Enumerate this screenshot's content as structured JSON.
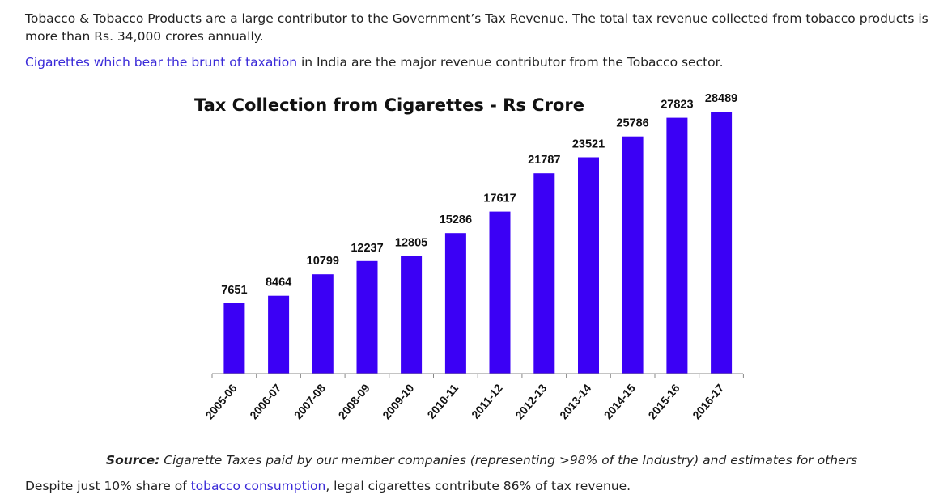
{
  "intro": {
    "text": "Tobacco & Tobacco Products are a large contributor to the Government’s Tax Revenue. The total tax revenue collected from tobacco products is more than Rs. 34,000 crores annually."
  },
  "para2": {
    "link_text": "Cigarettes which bear the brunt of taxation",
    "rest": " in India are the major revenue contributor from the Tobacco sector."
  },
  "chart_data": {
    "type": "bar",
    "title": "Tax Collection from Cigarettes - Rs Crore",
    "categories": [
      "2005-06",
      "2006-07",
      "2007-08",
      "2008-09",
      "2009-10",
      "2010-11",
      "2011-12",
      "2012-13",
      "2013-14",
      "2014-15",
      "2015-16",
      "2016-17"
    ],
    "values": [
      7651,
      8464,
      10799,
      12237,
      12805,
      15286,
      17617,
      21787,
      23521,
      25786,
      27823,
      28489
    ],
    "bar_color": "#3b00f5",
    "xlabel": "",
    "ylabel": "",
    "ylim": [
      0,
      28489
    ],
    "grid": false,
    "legend": "none"
  },
  "source": {
    "label": "Source:",
    "text": " Cigarette Taxes paid by our member companies (representing >98% of the Industry) and estimates for others"
  },
  "footer": {
    "pre": "Despite just 10% share of ",
    "link_text": "tobacco consumption",
    "post": ", legal cigarettes contribute 86% of tax revenue."
  }
}
